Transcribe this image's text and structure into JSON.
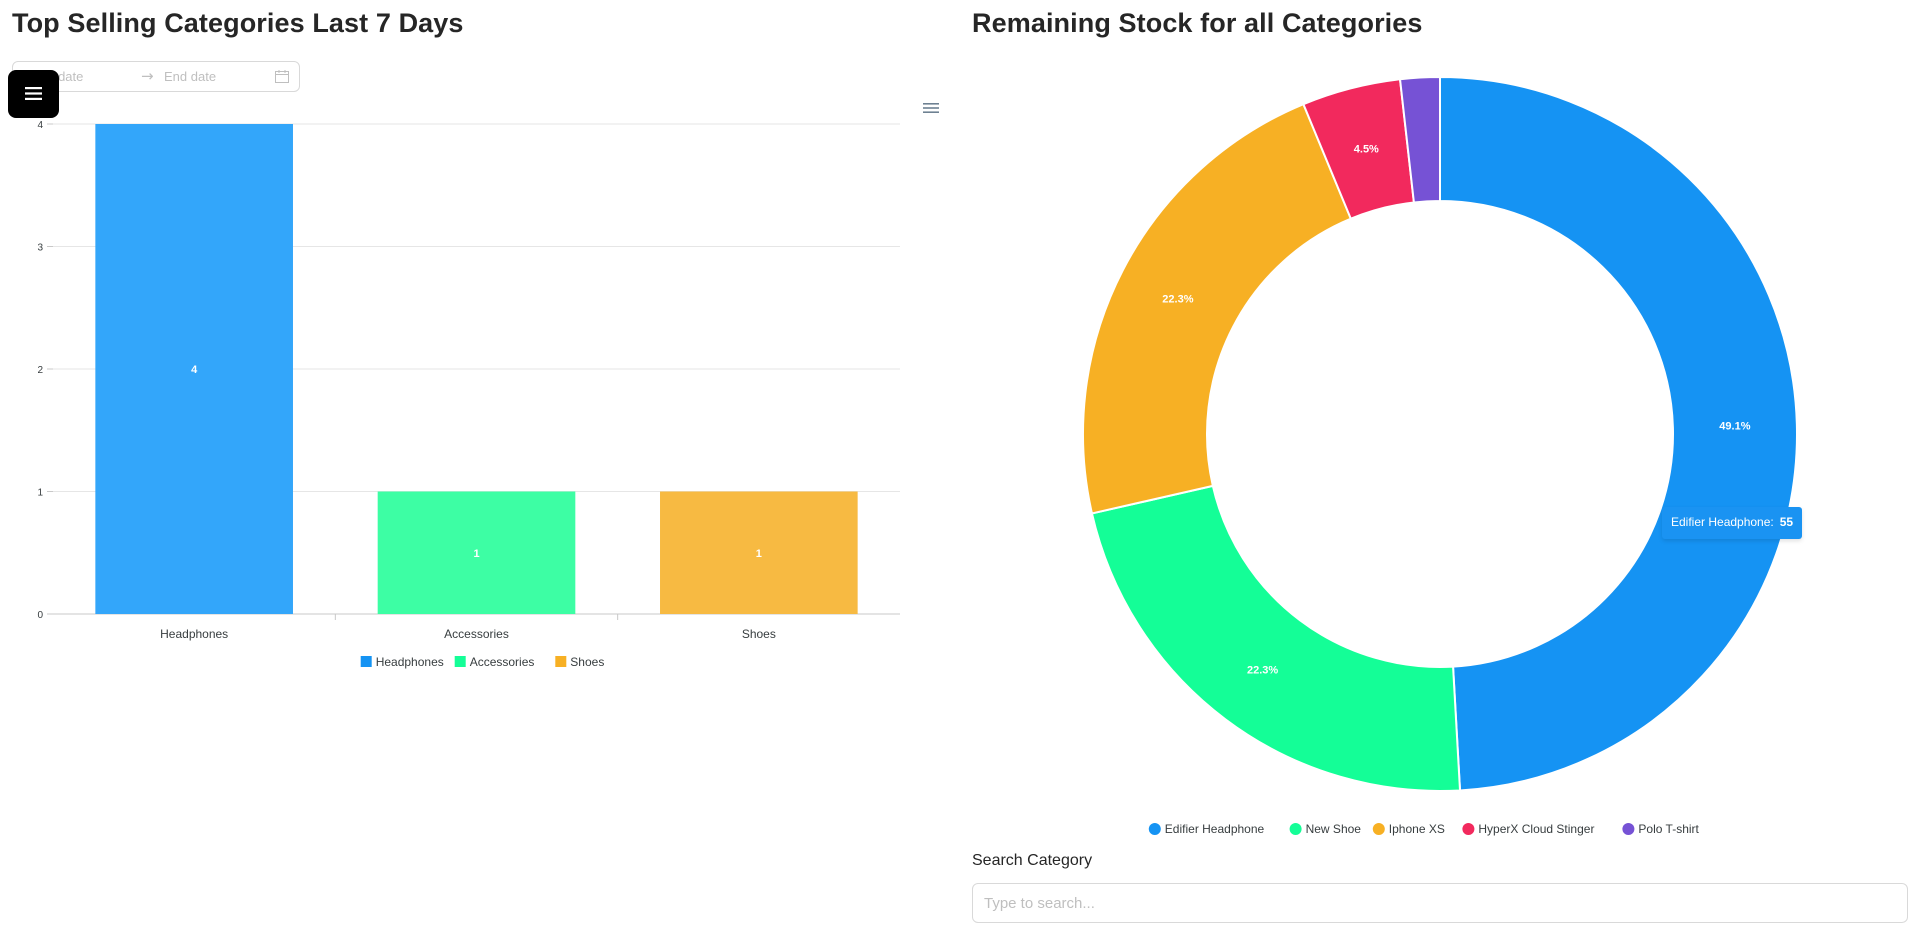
{
  "left_panel": {
    "title": "Top Selling Categories Last 7 Days",
    "date_range": {
      "start_placeholder": "Start date",
      "end_placeholder": "End date",
      "separator_icon": "arrow-right-icon",
      "calendar_icon": "calendar-icon"
    },
    "menu_button_icon": "hamburger-menu-icon",
    "chart_menu_icon": "chart-menu-icon"
  },
  "right_panel": {
    "title": "Remaining Stock for all Categories",
    "tooltip": {
      "name": "Edifier Headphone:",
      "value": "55"
    },
    "search": {
      "label": "Search Category",
      "placeholder": "Type to search..."
    }
  },
  "colors": {
    "blue": "#1593f3",
    "green": "#14fe97",
    "orange": "#f7b024",
    "red": "#f2295d",
    "purple": "#7652d5"
  },
  "chart_data": [
    {
      "type": "bar",
      "categories": [
        "Headphones",
        "Accessories",
        "Shoes"
      ],
      "values": [
        4,
        1,
        1
      ],
      "colors": [
        "#33a6fa",
        "#3dfea4",
        "#f7ba42"
      ],
      "ylim": [
        0,
        4
      ],
      "yticks": [
        0,
        1,
        2,
        3,
        4
      ],
      "data_labels": [
        "4",
        "1",
        "1"
      ],
      "legend": [
        "Headphones",
        "Accessories",
        "Shoes"
      ],
      "legend_colors": [
        "#1593f3",
        "#14fe97",
        "#f7b024"
      ],
      "legend_position": "bottom-center",
      "grid": true
    },
    {
      "type": "pie",
      "style": "donut",
      "labels": [
        "Edifier Headphone",
        "New Shoe",
        "Iphone XS",
        "HyperX Cloud Stinger",
        "Polo T-shirt"
      ],
      "values": [
        55,
        25,
        25,
        5,
        2
      ],
      "colors": [
        "#1593f3",
        "#14fe97",
        "#f7b024",
        "#f2295d",
        "#7652d5"
      ],
      "percent_labels": [
        "49.1%",
        "22.3%",
        "22.3%",
        "4.5%",
        ""
      ],
      "legend_position": "bottom-center"
    }
  ]
}
